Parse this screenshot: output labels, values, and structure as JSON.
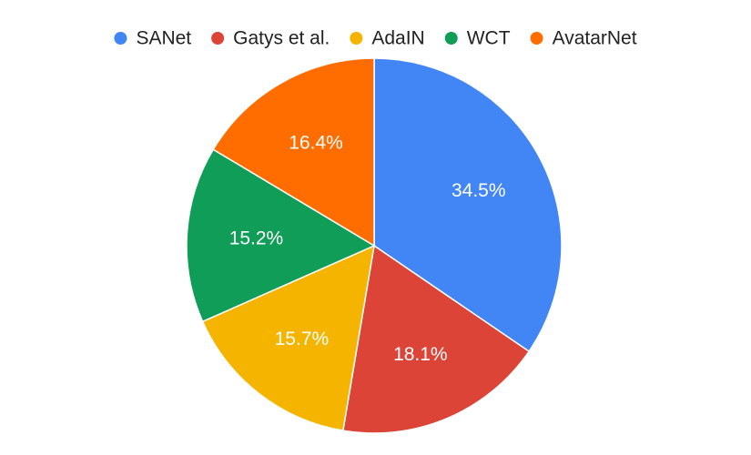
{
  "chart_data": {
    "type": "pie",
    "legend_position": "top-center",
    "series": [
      {
        "name": "SANet",
        "value": 34.5,
        "label": "34.5%",
        "color": "#4285F4"
      },
      {
        "name": "Gatys et al.",
        "value": 18.1,
        "label": "18.1%",
        "color": "#DB4437"
      },
      {
        "name": "AdaIN",
        "value": 15.7,
        "label": "15.7%",
        "color": "#F4B400"
      },
      {
        "name": "WCT",
        "value": 15.2,
        "label": "15.2%",
        "color": "#0F9D58"
      },
      {
        "name": "AvatarNet",
        "value": 16.4,
        "label": "16.4%",
        "color": "#FF6D01"
      }
    ]
  }
}
